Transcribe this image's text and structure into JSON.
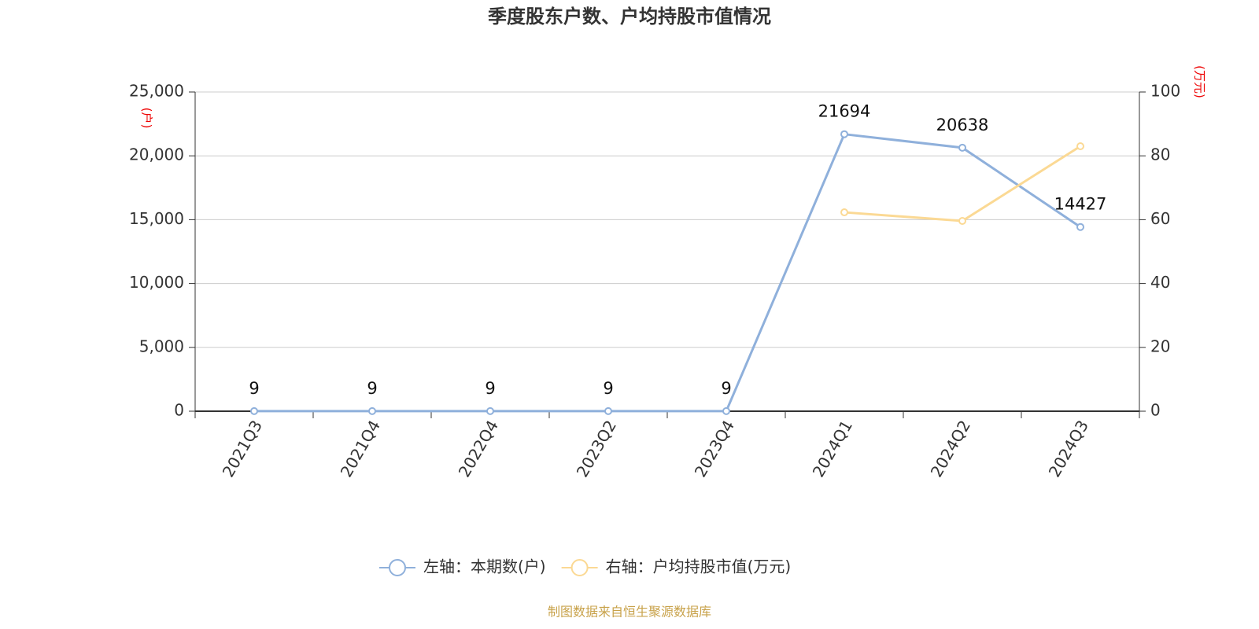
{
  "chart_data": {
    "type": "line",
    "title": "季度股东户数、户均持股市值情况",
    "categories": [
      "2021Q3",
      "2021Q4",
      "2022Q4",
      "2023Q2",
      "2023Q4",
      "2024Q1",
      "2024Q2",
      "2024Q3"
    ],
    "series": [
      {
        "name": "左轴：本期数(户)",
        "color": "#8fb0db",
        "values": [
          9,
          9,
          9,
          9,
          9,
          21694,
          20638,
          14427
        ]
      },
      {
        "name": "右轴：户均持股市值(万元)",
        "color": "#fbd994",
        "axis": "y2",
        "values": [
          null,
          null,
          null,
          null,
          null,
          62.3,
          59.6,
          83.0
        ]
      }
    ],
    "ylabel": "(户)",
    "y2label": "(万元)",
    "ylim": [
      0,
      25000
    ],
    "yticks": [
      0,
      {
        "value": 5000,
        "label": "5,000"
      },
      {
        "value": 10000,
        "label": "10,000"
      },
      {
        "value": 15000,
        "label": "15,000"
      },
      {
        "value": 20000,
        "label": "20,000"
      },
      {
        "value": 25000,
        "label": "25,000"
      }
    ],
    "y2lim": [
      0,
      100
    ],
    "y2ticks": [
      0,
      20,
      40,
      60,
      80,
      100
    ],
    "grid": true,
    "legend": "bottom",
    "footer": "制图数据来自恒生聚源数据库"
  }
}
